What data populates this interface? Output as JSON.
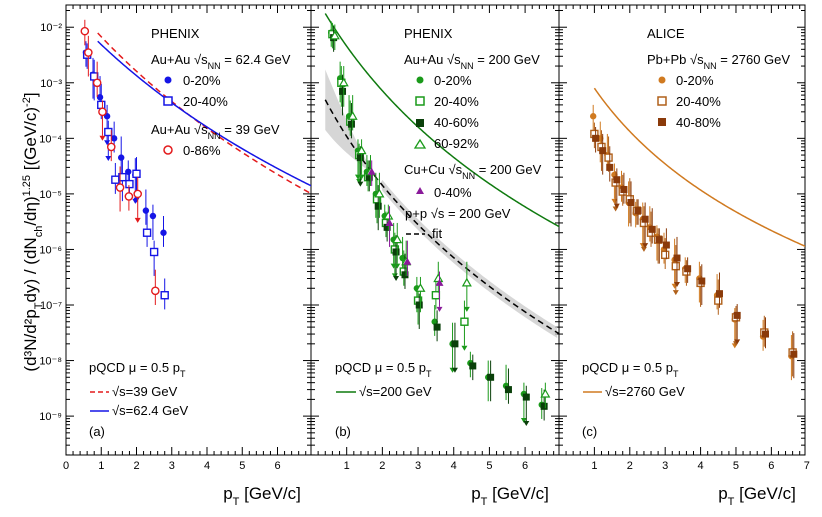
{
  "figure": {
    "ylabel_main": "(d",
    "ylabel_full": "(d³N/d²p_T dy) / (dN_ch/dη)^1.25 [(GeV/c)⁻²]",
    "xlabel": "p_T [GeV/c]"
  },
  "colors": {
    "blue": "#1515e6",
    "red": "#e31a1c",
    "green_light": "#1a9a1a",
    "green_mid": "#0f7a0f",
    "green_dark": "#0a400a",
    "purple": "#8a1a9a",
    "orange_light": "#d07a20",
    "orange_mid": "#b0601a",
    "orange_dark": "#8a3a0a",
    "band": "#c8c8c8"
  },
  "chart_data": [
    {
      "type": "scatter",
      "panel_label": "(a)",
      "experiment": "PHENIX",
      "system1": "Au+Au",
      "energy1": "= 62.4 GeV",
      "system2": "Au+Au",
      "energy2": "= 39 GeV",
      "sqrt_label": "√s",
      "nn_sub": "NN",
      "xlim": [
        0,
        7
      ],
      "ylim_exp": [
        -9.7,
        -1.6
      ],
      "xticks": [
        "0",
        "1",
        "2",
        "3",
        "4",
        "5",
        "6"
      ],
      "yticks": [
        "10⁻²",
        "10⁻³",
        "10⁻⁴",
        "10⁻⁵",
        "10⁻⁶",
        "10⁻⁷",
        "10⁻⁸",
        "10⁻⁹"
      ],
      "series": [
        {
          "name": "0-20%",
          "color": "blue",
          "marker": "circle-filled",
          "x": [
            0.6,
            0.8,
            1.0,
            1.2,
            1.4,
            1.6,
            1.8,
            2.0,
            2.3,
            2.5,
            2.8
          ],
          "y": [
            0.0035,
            0.0014,
            0.00055,
            0.00025,
            0.0001,
            4.5e-05,
            2.5e-05,
            2.2e-05,
            5e-06,
            4e-06,
            2e-06
          ]
        },
        {
          "name": "20-40%",
          "color": "blue",
          "marker": "square-open",
          "x": [
            0.6,
            0.8,
            1.0,
            1.2,
            1.4,
            1.6,
            1.8,
            2.0,
            2.3,
            2.5,
            2.8
          ],
          "y": [
            0.0032,
            0.0013,
            0.0004,
            0.00013,
            1.8e-05,
            2e-05,
            1.5e-05,
            2.3e-05,
            2e-06,
            9e-07,
            1.5e-07
          ]
        },
        {
          "name": "0-86%",
          "color": "red",
          "marker": "circle-open",
          "x": [
            0.5,
            0.6,
            0.85,
            1.0,
            1.25,
            1.5,
            1.75,
            2.0,
            2.5
          ],
          "y": [
            0.0085,
            0.0035,
            0.001,
            0.0003,
            7e-05,
            1.3e-05,
            9e-06,
            1e-05,
            1.8e-07
          ]
        }
      ],
      "legend_pqcd": "pQCD μ = 0.5 p",
      "legend_pqcd_sub": "T",
      "curves": [
        {
          "name": "=39 GeV",
          "color": "red",
          "style": "dashed",
          "a": 0.015,
          "x0": 0.5,
          "b": 6.0,
          "n": 10.0
        },
        {
          "name": "=62.4 GeV",
          "color": "blue",
          "style": "solid",
          "a": 0.01,
          "x0": 0.5,
          "b": 6.0,
          "n": 9.0
        }
      ]
    },
    {
      "type": "scatter",
      "panel_label": "(b)",
      "experiment": "PHENIX",
      "system1": "Au+Au",
      "energy1": "= 200 GeV",
      "system2": "Cu+Cu",
      "energy2": "= 200 GeV",
      "pp_label": "p+p",
      "pp_energy": "= 200 GeV",
      "fit_label": "fit",
      "sqrt_label": "√s",
      "nn_sub": "NN",
      "xlim": [
        0,
        7
      ],
      "ylim_exp": [
        -9.7,
        -1.6
      ],
      "xticks": [
        "1",
        "2",
        "3",
        "4",
        "5",
        "6"
      ],
      "series": [
        {
          "name": "0-20%",
          "color": "green_light",
          "marker": "circle-filled",
          "x": [
            0.6,
            0.85,
            1.1,
            1.35,
            1.6,
            1.85,
            2.1,
            2.35,
            2.6,
            3.0,
            3.5,
            4.0,
            4.5,
            5.0,
            5.5,
            6.0,
            6.5
          ],
          "y": [
            0.008,
            0.0012,
            0.00025,
            6e-05,
            2.5e-05,
            1e-05,
            4e-06,
            1.5e-06,
            7e-07,
            2e-07,
            5e-08,
            2e-08,
            9e-09,
            5e-09,
            3.5e-09,
            2.5e-09,
            1.6e-09
          ]
        },
        {
          "name": "20-40%",
          "color": "green_light",
          "marker": "square-open",
          "x": [
            0.6,
            0.85,
            1.1,
            1.35,
            1.6,
            1.85,
            2.1,
            2.35,
            2.6,
            3.0,
            3.5,
            4.3
          ],
          "y": [
            0.0075,
            0.001,
            0.0002,
            5e-05,
            2e-05,
            8e-06,
            3e-06,
            1e-06,
            4e-07,
            1.2e-07,
            1.5e-07,
            5e-08
          ]
        },
        {
          "name": "40-60%",
          "color": "green_dark",
          "marker": "square-filled",
          "x": [
            0.6,
            0.85,
            1.1,
            1.35,
            1.6,
            1.85,
            2.1,
            2.35,
            2.6,
            3.0,
            3.5,
            4.0,
            4.5,
            5.0,
            5.5,
            6.0,
            6.5
          ],
          "y": [
            0.0065,
            0.0007,
            0.00018,
            4.5e-05,
            2e-05,
            6e-06,
            2.5e-06,
            9e-07,
            3.5e-07,
            1e-07,
            4e-08,
            2e-08,
            8e-09,
            5e-09,
            3e-09,
            2.2e-09,
            1.5e-09
          ]
        },
        {
          "name": "60-92%",
          "color": "green_light",
          "marker": "triangle-open",
          "x": [
            0.6,
            0.85,
            1.1,
            1.35,
            1.6,
            1.85,
            2.1,
            2.35,
            2.6,
            3.0,
            3.5,
            4.3,
            6.5
          ],
          "y": [
            0.007,
            0.001,
            0.00025,
            6e-05,
            2.5e-05,
            1e-05,
            4e-06,
            1.5e-06,
            6e-07,
            2e-07,
            3e-07,
            2.5e-07,
            2.5e-09
          ]
        },
        {
          "name": "0-40%",
          "color": "purple",
          "marker": "triangle-filled",
          "x": [
            1.6,
            2.1,
            2.6,
            3.5
          ],
          "y": [
            2.5e-05,
            3e-06,
            6e-07,
            2.5e-07
          ]
        }
      ],
      "legend_pqcd": "pQCD μ = 0.5 p",
      "legend_pqcd_sub": "T",
      "curves": [
        {
          "name": "=200 GeV",
          "color": "green_mid",
          "style": "solid",
          "a": 0.02,
          "x0": 0.35,
          "b": 3.2,
          "n": 8.0
        },
        {
          "name": "fit",
          "color": "black",
          "style": "dashed",
          "a": 0.0006,
          "x0": 0.35,
          "b": 2.6,
          "n": 7.0
        }
      ]
    },
    {
      "type": "scatter",
      "panel_label": "(c)",
      "experiment": "ALICE",
      "system1": "Pb+Pb",
      "energy1": "= 2760 GeV",
      "sqrt_label": "√s",
      "nn_sub": "NN",
      "xlim": [
        0,
        7
      ],
      "ylim_exp": [
        -9.7,
        -1.6
      ],
      "xticks": [
        "1",
        "2",
        "3",
        "4",
        "5",
        "6",
        "7"
      ],
      "series": [
        {
          "name": "0-20%",
          "color": "orange_light",
          "marker": "circle-filled",
          "x": [
            1.0,
            1.2,
            1.4,
            1.6,
            1.8,
            2.0,
            2.2,
            2.4,
            2.6,
            2.8,
            3.0,
            3.3,
            3.6,
            4.0,
            4.5,
            5.0,
            5.8,
            6.6
          ],
          "y": [
            0.00025,
            0.0001,
            5e-05,
            2.2e-05,
            1.3e-05,
            7e-06,
            4.5e-06,
            3.5e-06,
            2.5e-06,
            1.7e-06,
            1e-06,
            6.5e-07,
            4.5e-07,
            3e-07,
            1.5e-07,
            5.5e-08,
            2.7e-08,
            1.2e-08
          ]
        },
        {
          "name": "20-40%",
          "color": "orange_mid",
          "marker": "square-open",
          "x": [
            1.0,
            1.2,
            1.4,
            1.6,
            1.8,
            2.0,
            2.2,
            2.4,
            2.6,
            2.8,
            3.0,
            3.3,
            3.6,
            4.0,
            4.5,
            5.0,
            5.8,
            6.6
          ],
          "y": [
            0.00012,
            7e-05,
            4.5e-05,
            1.6e-05,
            1.1e-05,
            8e-06,
            5e-06,
            3e-06,
            2e-06,
            1.5e-06,
            8e-07,
            5e-07,
            4e-07,
            2.5e-07,
            1.2e-07,
            6e-08,
            3.2e-08,
            1.4e-08
          ]
        },
        {
          "name": "40-80%",
          "color": "orange_dark",
          "marker": "square-filled",
          "x": [
            1.0,
            1.2,
            1.4,
            1.6,
            1.8,
            2.0,
            2.2,
            2.4,
            2.6,
            2.8,
            3.0,
            3.3,
            3.6,
            4.0,
            4.5,
            5.0,
            5.8,
            6.6
          ],
          "y": [
            0.0001,
            6e-05,
            3e-05,
            1.8e-05,
            1.2e-05,
            7e-06,
            5e-06,
            3.5e-06,
            2.3e-06,
            1.5e-06,
            1.2e-06,
            7e-07,
            4.5e-07,
            2.7e-07,
            1.6e-07,
            6.5e-08,
            3e-08,
            1.3e-08
          ]
        }
      ],
      "legend_pqcd": "pQCD μ = 0.5 p",
      "legend_pqcd_sub": "T",
      "curves": [
        {
          "name": "=2760 GeV",
          "color": "orange_light",
          "style": "solid",
          "a": 0.002,
          "x0": 0.6,
          "b": 2.2,
          "n": 5.5
        }
      ]
    }
  ]
}
